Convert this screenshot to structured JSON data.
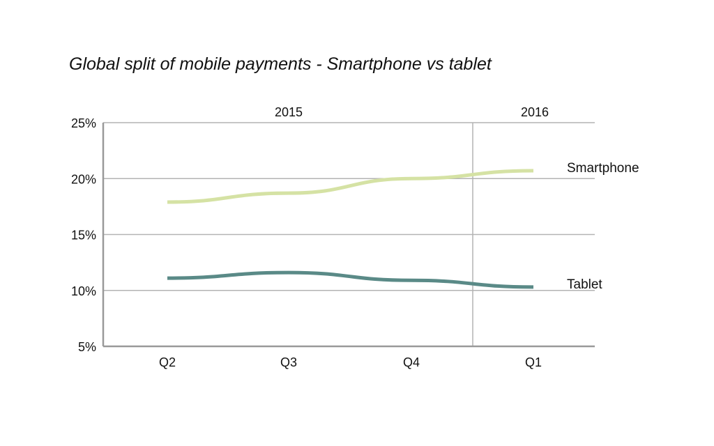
{
  "chart_data": {
    "type": "line",
    "title": "Global split of mobile payments - Smartphone vs tablet",
    "xlabel": "",
    "ylabel": "",
    "categories": [
      "Q2",
      "Q3",
      "Q4",
      "Q1"
    ],
    "year_groups": [
      {
        "label": "2015",
        "categories": [
          "Q2",
          "Q3",
          "Q4"
        ]
      },
      {
        "label": "2016",
        "categories": [
          "Q1"
        ]
      }
    ],
    "ylim": [
      5,
      25
    ],
    "yticks": [
      5,
      10,
      15,
      20,
      25
    ],
    "ytick_labels": [
      "5%",
      "10%",
      "15%",
      "20%",
      "25%"
    ],
    "grid": true,
    "legend": "inline-right",
    "series": [
      {
        "name": "Smartphone",
        "color": "#d5e2a4",
        "values": [
          17.9,
          18.7,
          20.0,
          20.7
        ]
      },
      {
        "name": "Tablet",
        "color": "#5a8a87",
        "values": [
          11.1,
          11.6,
          10.9,
          10.3
        ]
      }
    ]
  }
}
